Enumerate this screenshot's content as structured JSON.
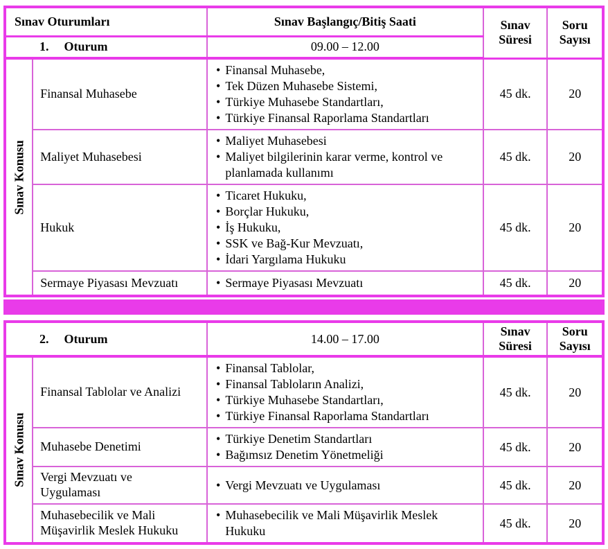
{
  "colors": {
    "border_thick": "#e93be9",
    "border_thin": "#d863d8",
    "text": "#000000",
    "background": "#ffffff"
  },
  "t1": {
    "col_headers": {
      "sessions": "Sınav Oturumları",
      "time": "Sınav Başlangıç/Bitiş Saati",
      "duration": "Sınav\nSüresi",
      "questions": "Soru\nSayısı"
    },
    "session": {
      "number": "1.",
      "name": "Oturum",
      "time": "09.00 – 12.00"
    },
    "side_label": "Sınav Konusu",
    "rows": [
      {
        "subject": "Finansal Muhasebe",
        "topics": [
          "Finansal Muhasebe,",
          "Tek Düzen Muhasebe Sistemi,",
          "Türkiye Muhasebe Standartları,",
          "Türkiye Finansal Raporlama Standartları"
        ],
        "duration": "45 dk.",
        "questions": "20"
      },
      {
        "subject": "Maliyet Muhasebesi",
        "topics": [
          "Maliyet Muhasebesi",
          "Maliyet bilgilerinin karar verme, kontrol ve\nplanlamada kullanımı"
        ],
        "duration": "45 dk.",
        "questions": "20"
      },
      {
        "subject": "Hukuk",
        "topics": [
          "Ticaret Hukuku,",
          "Borçlar Hukuku,",
          "İş Hukuku,",
          "SSK ve Bağ-Kur Mevzuatı,",
          "İdari Yargılama Hukuku"
        ],
        "duration": "45 dk.",
        "questions": "20"
      },
      {
        "subject": "Sermaye Piyasası Mevzuatı",
        "topics": [
          "Sermaye Piyasası Mevzuatı"
        ],
        "duration": "45 dk.",
        "questions": "20"
      }
    ]
  },
  "t2": {
    "col_headers": {
      "duration": "Sınav\nSüresi",
      "questions": "Soru\nSayısı"
    },
    "session": {
      "number": "2.",
      "name": "Oturum",
      "time": "14.00 – 17.00"
    },
    "side_label": "Sınav Konusu",
    "rows": [
      {
        "subject": "Finansal Tablolar ve Analizi",
        "topics": [
          "Finansal Tablolar,",
          "Finansal Tabloların Analizi,",
          "Türkiye Muhasebe Standartları,",
          "Türkiye Finansal Raporlama Standartları"
        ],
        "duration": "45 dk.",
        "questions": "20"
      },
      {
        "subject": "Muhasebe Denetimi",
        "topics": [
          "Türkiye Denetim Standartları",
          "Bağımsız Denetim Yönetmeliği"
        ],
        "duration": "45 dk.",
        "questions": "20"
      },
      {
        "subject": "Vergi Mevzuatı ve\nUygulaması",
        "topics": [
          "Vergi Mevzuatı ve Uygulaması"
        ],
        "duration": "45 dk.",
        "questions": "20"
      },
      {
        "subject": "Muhasebecilik ve Mali\nMüşavirlik Meslek Hukuku",
        "topics": [
          "Muhasebecilik ve Mali Müşavirlik Meslek\nHukuku"
        ],
        "duration": "45 dk.",
        "questions": "20"
      }
    ]
  }
}
